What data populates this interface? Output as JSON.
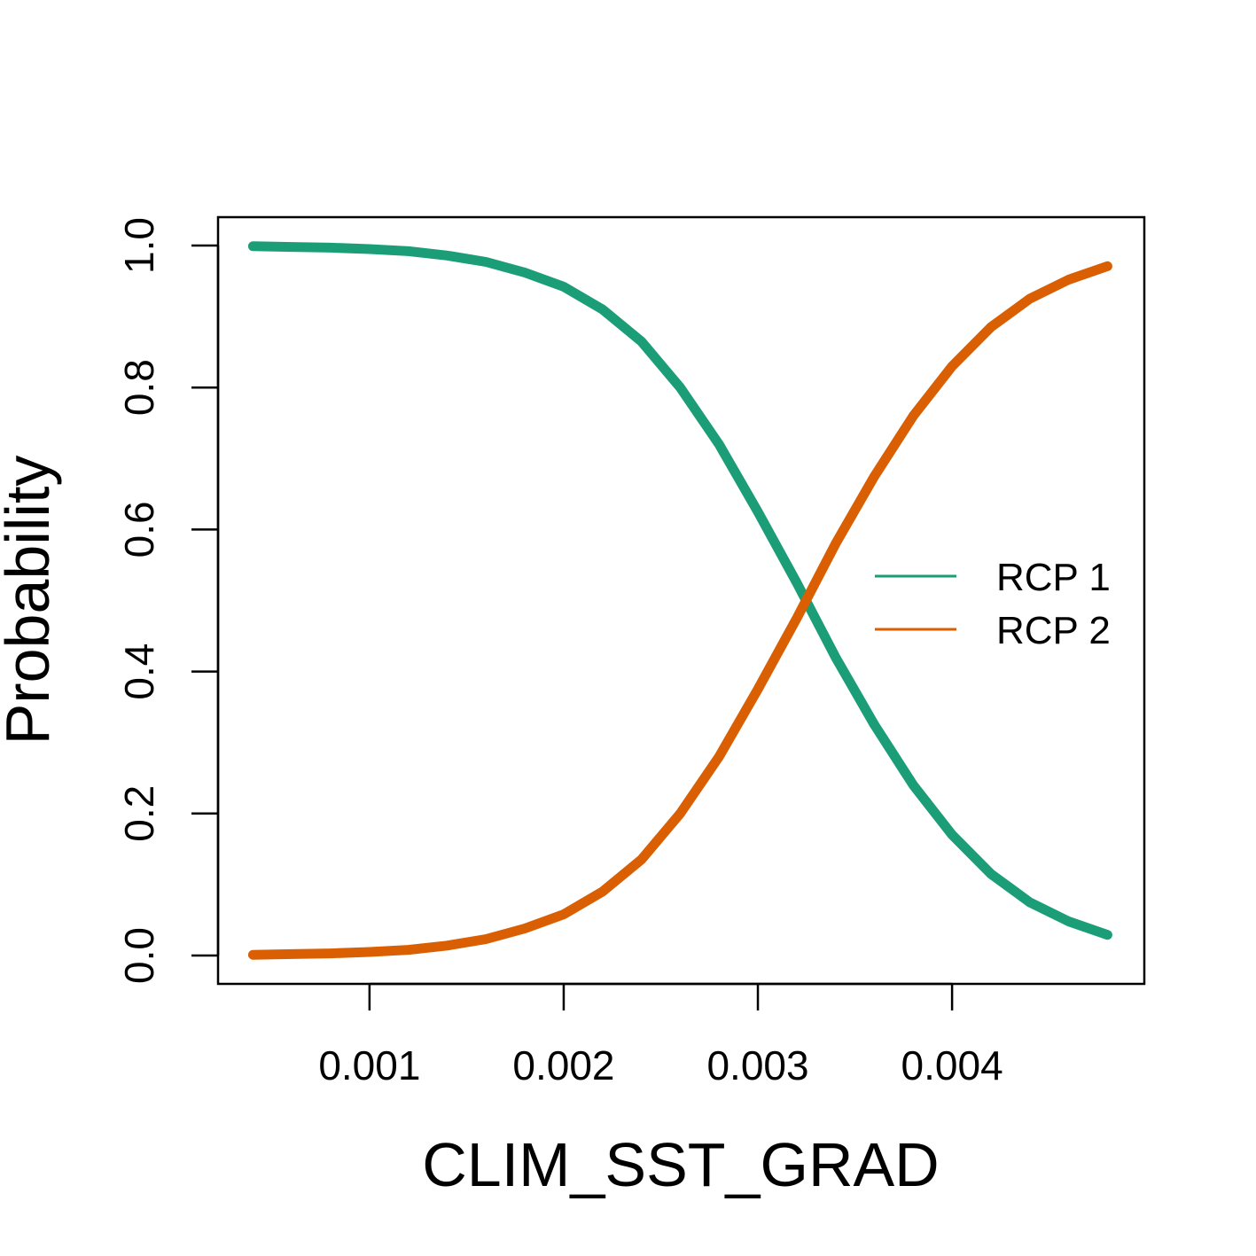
{
  "chart_data": {
    "type": "line",
    "title": "",
    "xlabel": "CLIM_SST_GRAD",
    "ylabel": "Probability",
    "xlim": [
      0.00022,
      0.00499
    ],
    "ylim": [
      -0.04,
      1.04
    ],
    "x_ticks": [
      0.001,
      0.002,
      0.003,
      0.004
    ],
    "x_tick_labels": [
      "0.001",
      "0.002",
      "0.003",
      "0.004"
    ],
    "y_ticks": [
      0.0,
      0.2,
      0.4,
      0.6,
      0.8,
      1.0
    ],
    "y_tick_labels": [
      "0.0",
      "0.2",
      "0.4",
      "0.6",
      "0.8",
      "1.0"
    ],
    "grid": false,
    "legend_position": "right",
    "x": [
      0.0004,
      0.0006,
      0.0008,
      0.001,
      0.0012,
      0.0014,
      0.0016,
      0.0018,
      0.002,
      0.0022,
      0.0024,
      0.0026,
      0.0028,
      0.003,
      0.0032,
      0.0034,
      0.0036,
      0.0038,
      0.004,
      0.0042,
      0.0044,
      0.0046,
      0.0048
    ],
    "series": [
      {
        "name": "RCP 1",
        "color": "#1b9e77",
        "values": [
          0.999,
          0.998,
          0.997,
          0.995,
          0.992,
          0.986,
          0.977,
          0.962,
          0.942,
          0.91,
          0.865,
          0.8,
          0.72,
          0.625,
          0.525,
          0.42,
          0.325,
          0.24,
          0.17,
          0.115,
          0.075,
          0.048,
          0.029
        ]
      },
      {
        "name": "RCP 2",
        "color": "#d95f02",
        "values": [
          0.001,
          0.002,
          0.003,
          0.005,
          0.008,
          0.014,
          0.023,
          0.038,
          0.058,
          0.09,
          0.135,
          0.2,
          0.28,
          0.375,
          0.475,
          0.58,
          0.675,
          0.76,
          0.83,
          0.885,
          0.925,
          0.952,
          0.971
        ]
      }
    ]
  }
}
